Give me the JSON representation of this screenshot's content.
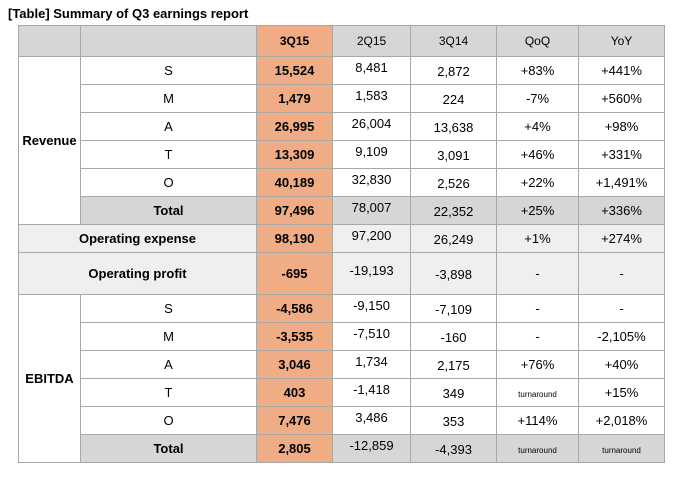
{
  "title": "[Table] Summary of Q3 earnings report",
  "columns": [
    "3Q15",
    "2Q15",
    "3Q14",
    "QoQ",
    "YoY"
  ],
  "revenue": {
    "group_label": "Revenue",
    "rows": [
      {
        "label": "S",
        "q3_15": "15,524",
        "q2_15": "8,481",
        "q3_14": "2,872",
        "qoq": "+83%",
        "yoy": "+441%"
      },
      {
        "label": "M",
        "q3_15": "1,479",
        "q2_15": "1,583",
        "q3_14": "224",
        "qoq": "-7%",
        "yoy": "+560%"
      },
      {
        "label": "A",
        "q3_15": "26,995",
        "q2_15": "26,004",
        "q3_14": "13,638",
        "qoq": "+4%",
        "yoy": "+98%"
      },
      {
        "label": "T",
        "q3_15": "13,309",
        "q2_15": "9,109",
        "q3_14": "3,091",
        "qoq": "+46%",
        "yoy": "+331%"
      },
      {
        "label": "O",
        "q3_15": "40,189",
        "q2_15": "32,830",
        "q3_14": "2,526",
        "qoq": "+22%",
        "yoy": "+1,491%"
      }
    ],
    "total": {
      "label": "Total",
      "q3_15": "97,496",
      "q2_15": "78,007",
      "q3_14": "22,352",
      "qoq": "+25%",
      "yoy": "+336%"
    }
  },
  "operating_expense": {
    "label": "Operating expense",
    "q3_15": "98,190",
    "q2_15": "97,200",
    "q3_14": "26,249",
    "qoq": "+1%",
    "yoy": "+274%"
  },
  "operating_profit": {
    "label": "Operating profit",
    "q3_15": "-695",
    "q2_15": "-19,193",
    "q3_14": "-3,898",
    "qoq": "-",
    "yoy": "-"
  },
  "ebitda": {
    "group_label": "EBITDA",
    "rows": [
      {
        "label": "S",
        "q3_15": "-4,586",
        "q2_15": "-9,150",
        "q3_14": "-7,109",
        "qoq": "-",
        "yoy": "-"
      },
      {
        "label": "M",
        "q3_15": "-3,535",
        "q2_15": "-7,510",
        "q3_14": "-160",
        "qoq": "-",
        "yoy": "-2,105%"
      },
      {
        "label": "A",
        "q3_15": "3,046",
        "q2_15": "1,734",
        "q3_14": "2,175",
        "qoq": "+76%",
        "yoy": "+40%"
      },
      {
        "label": "T",
        "q3_15": "403",
        "q2_15": "-1,418",
        "q3_14": "349",
        "qoq": "turnaround",
        "yoy": "+15%"
      },
      {
        "label": "O",
        "q3_15": "7,476",
        "q2_15": "3,486",
        "q3_14": "353",
        "qoq": "+114%",
        "yoy": "+2,018%"
      }
    ],
    "total": {
      "label": "Total",
      "q3_15": "2,805",
      "q2_15": "-12,859",
      "q3_14": "-4,393",
      "qoq": "turnaround",
      "yoy": "turnaround"
    }
  },
  "colors": {
    "highlight": "#efac85",
    "header_gray": "#d6d6d6",
    "light_gray": "#efefef"
  }
}
